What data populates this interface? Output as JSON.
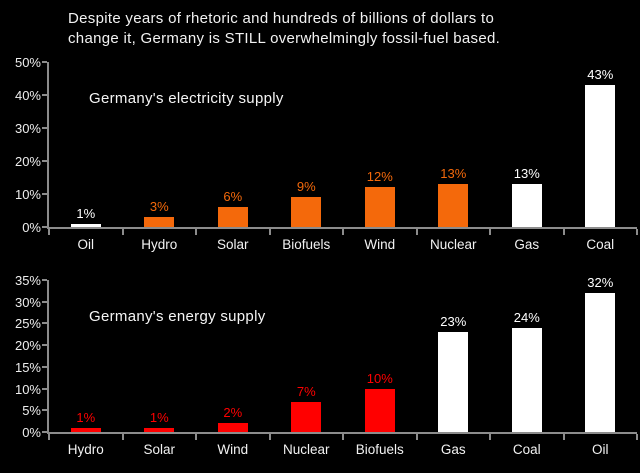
{
  "title_lines": [
    "Despite years of rhetoric and hundreds of billions of dollars to",
    "change it, Germany is STILL overwhelmingly fossil-fuel based."
  ],
  "colors": {
    "background": "#000000",
    "orange": "#f4690b",
    "red": "#ff0000",
    "white": "#ffffff",
    "axis": "#8c8c8c",
    "text": "#f2f2f2"
  },
  "chart_data": [
    {
      "type": "bar",
      "title": "Germany's electricity supply",
      "categories": [
        "Oil",
        "Hydro",
        "Solar",
        "Biofuels",
        "Wind",
        "Nuclear",
        "Gas",
        "Coal"
      ],
      "values": [
        1,
        3,
        6,
        9,
        12,
        13,
        13,
        43
      ],
      "data_labels": [
        "1%",
        "3%",
        "6%",
        "9%",
        "12%",
        "13%",
        "13%",
        "43%"
      ],
      "bar_colors": [
        "white",
        "orange",
        "orange",
        "orange",
        "orange",
        "orange",
        "white",
        "white"
      ],
      "xlabel": "",
      "ylabel": "",
      "ylim": [
        0,
        50
      ],
      "ytick_step": 10,
      "ytick_labels": [
        "0%",
        "10%",
        "20%",
        "30%",
        "40%",
        "50%"
      ],
      "grid": false,
      "legend": "none"
    },
    {
      "type": "bar",
      "title": "Germany's energy supply",
      "categories": [
        "Hydro",
        "Solar",
        "Wind",
        "Nuclear",
        "Biofuels",
        "Gas",
        "Coal",
        "Oil"
      ],
      "values": [
        1,
        1,
        2,
        7,
        10,
        23,
        24,
        32
      ],
      "data_labels": [
        "1%",
        "1%",
        "2%",
        "7%",
        "10%",
        "23%",
        "24%",
        "32%"
      ],
      "bar_colors": [
        "red",
        "red",
        "red",
        "red",
        "red",
        "white",
        "white",
        "white"
      ],
      "xlabel": "",
      "ylabel": "",
      "ylim": [
        0,
        35
      ],
      "ytick_step": 5,
      "ytick_labels": [
        "0%",
        "5%",
        "10%",
        "15%",
        "20%",
        "25%",
        "30%",
        "35%"
      ],
      "grid": false,
      "legend": "none"
    }
  ]
}
